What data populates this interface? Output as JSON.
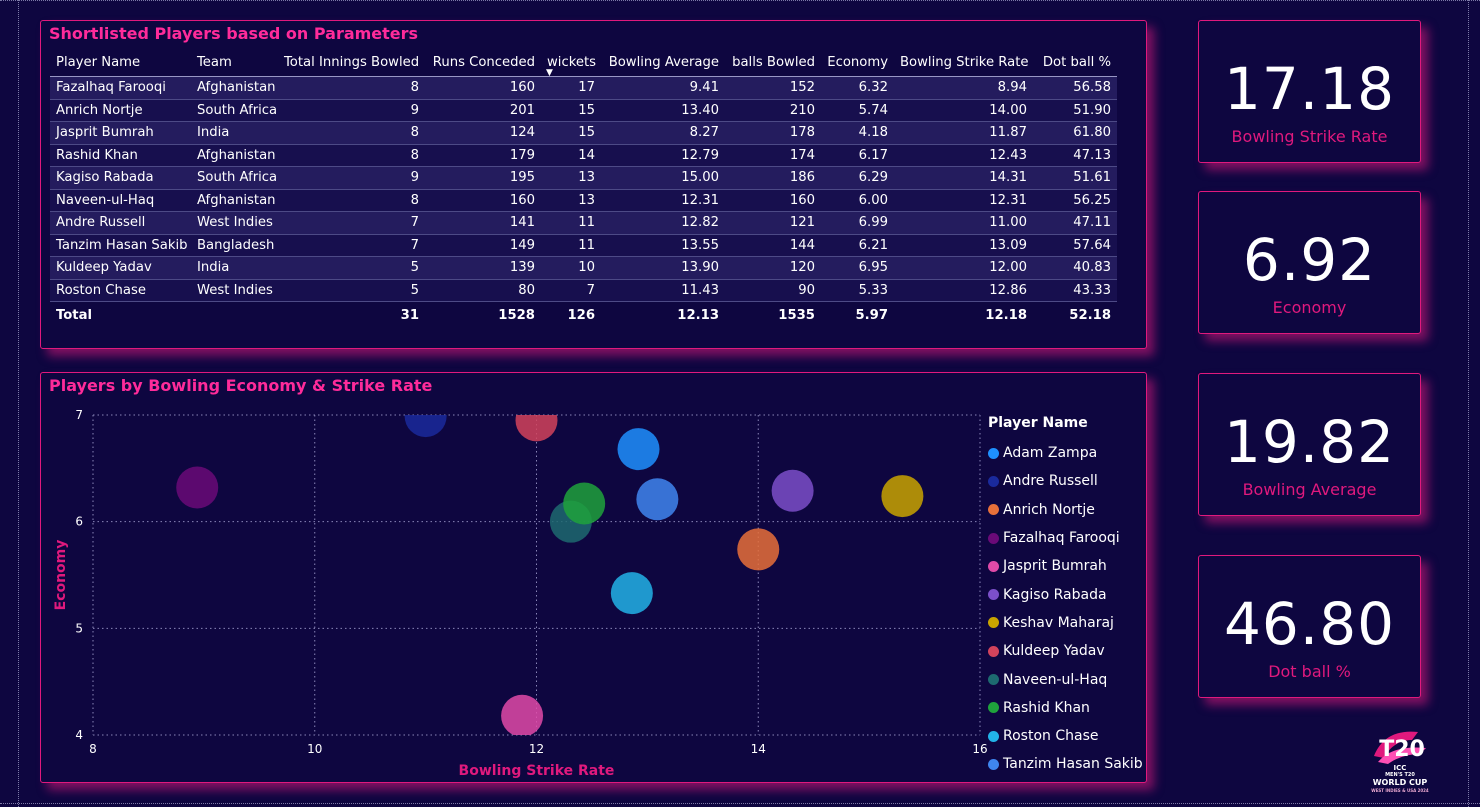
{
  "table": {
    "title": "Shortlisted Players based on Parameters",
    "columns": [
      "Player Name",
      "Team",
      "Total Innings Bowled",
      "Runs Conceded",
      "wickets",
      "Bowling Average",
      "balls Bowled",
      "Economy",
      "Bowling Strike Rate",
      "Dot ball %"
    ],
    "sorted_column": "wickets",
    "rows": [
      [
        "Fazalhaq Farooqi",
        "Afghanistan",
        "8",
        "160",
        "17",
        "9.41",
        "152",
        "6.32",
        "8.94",
        "56.58"
      ],
      [
        "Anrich Nortje",
        "South Africa",
        "9",
        "201",
        "15",
        "13.40",
        "210",
        "5.74",
        "14.00",
        "51.90"
      ],
      [
        "Jasprit Bumrah",
        "India",
        "8",
        "124",
        "15",
        "8.27",
        "178",
        "4.18",
        "11.87",
        "61.80"
      ],
      [
        "Rashid Khan",
        "Afghanistan",
        "8",
        "179",
        "14",
        "12.79",
        "174",
        "6.17",
        "12.43",
        "47.13"
      ],
      [
        "Kagiso Rabada",
        "South Africa",
        "9",
        "195",
        "13",
        "15.00",
        "186",
        "6.29",
        "14.31",
        "51.61"
      ],
      [
        "Naveen-ul-Haq",
        "Afghanistan",
        "8",
        "160",
        "13",
        "12.31",
        "160",
        "6.00",
        "12.31",
        "56.25"
      ],
      [
        "Andre Russell",
        "West Indies",
        "7",
        "141",
        "11",
        "12.82",
        "121",
        "6.99",
        "11.00",
        "47.11"
      ],
      [
        "Tanzim Hasan Sakib",
        "Bangladesh",
        "7",
        "149",
        "11",
        "13.55",
        "144",
        "6.21",
        "13.09",
        "57.64"
      ],
      [
        "Kuldeep Yadav",
        "India",
        "5",
        "139",
        "10",
        "13.90",
        "120",
        "6.95",
        "12.00",
        "40.83"
      ],
      [
        "Roston Chase",
        "West Indies",
        "5",
        "80",
        "7",
        "11.43",
        "90",
        "5.33",
        "12.86",
        "43.33"
      ]
    ],
    "total": [
      "Total",
      "",
      "31",
      "1528",
      "126",
      "12.13",
      "1535",
      "5.97",
      "12.18",
      "52.18"
    ]
  },
  "kpis": [
    {
      "value": "17.18",
      "label": "Bowling Strike Rate"
    },
    {
      "value": "6.92",
      "label": "Economy"
    },
    {
      "value": "19.82",
      "label": "Bowling Average"
    },
    {
      "value": "46.80",
      "label": "Dot ball %"
    }
  ],
  "chart_data": {
    "type": "scatter",
    "title": "Players by Bowling Economy & Strike Rate",
    "xlabel": "Bowling Strike Rate",
    "ylabel": "Economy",
    "xlim": [
      8,
      16
    ],
    "ylim": [
      4,
      7
    ],
    "xticks": [
      8,
      10,
      12,
      14,
      16
    ],
    "yticks": [
      4,
      5,
      6,
      7
    ],
    "grid": true,
    "legend_title": "Player Name",
    "legend_position": "right",
    "series": [
      {
        "name": "Adam Zampa",
        "x": 12.92,
        "y": 6.68,
        "color": "#1e90ff"
      },
      {
        "name": "Andre Russell",
        "x": 11.0,
        "y": 6.99,
        "color": "#1a2a9c"
      },
      {
        "name": "Anrich Nortje",
        "x": 14.0,
        "y": 5.74,
        "color": "#e8703a"
      },
      {
        "name": "Fazalhaq Farooqi",
        "x": 8.94,
        "y": 6.32,
        "color": "#6a0a78"
      },
      {
        "name": "Jasprit Bumrah",
        "x": 11.87,
        "y": 4.18,
        "color": "#e04aa8"
      },
      {
        "name": "Kagiso Rabada",
        "x": 14.31,
        "y": 6.29,
        "color": "#7b4fc9"
      },
      {
        "name": "Keshav Maharaj",
        "x": 15.3,
        "y": 6.24,
        "color": "#c9a400"
      },
      {
        "name": "Kuldeep Yadav",
        "x": 12.0,
        "y": 6.95,
        "color": "#d2435c"
      },
      {
        "name": "Naveen-ul-Haq",
        "x": 12.31,
        "y": 6.0,
        "color": "#1d6a70"
      },
      {
        "name": "Rashid Khan",
        "x": 12.43,
        "y": 6.17,
        "color": "#1fa23c"
      },
      {
        "name": "Roston Chase",
        "x": 12.86,
        "y": 5.33,
        "color": "#22b3e8"
      },
      {
        "name": "Tanzim Hasan Sakib",
        "x": 13.09,
        "y": 6.21,
        "color": "#3f86f0"
      }
    ]
  },
  "logo": {
    "line1": "T20",
    "line2": "ICC",
    "line3": "MEN'S T20",
    "line4": "WORLD CUP",
    "line5": "WEST INDIES & USA 2024"
  }
}
